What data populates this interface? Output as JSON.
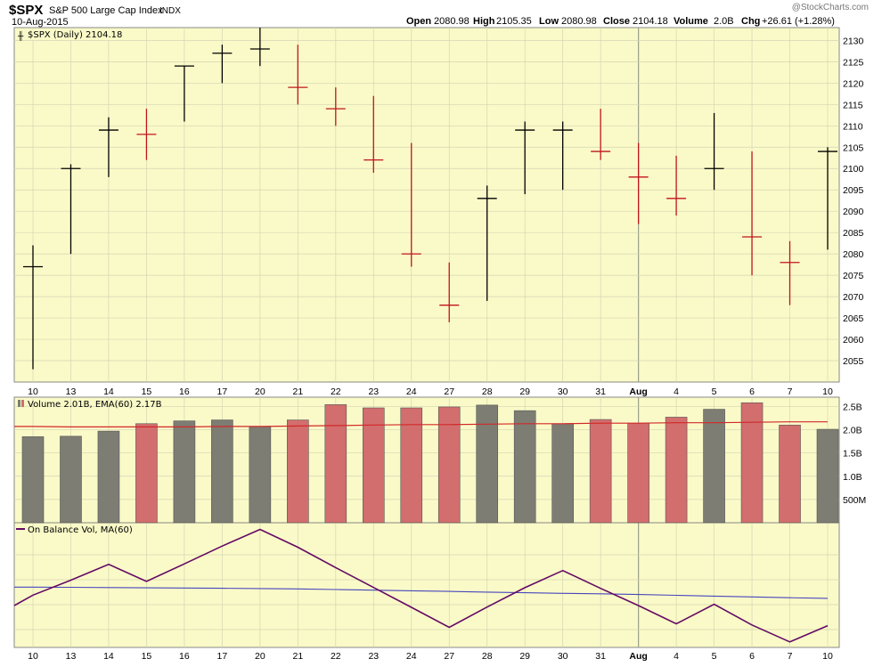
{
  "header": {
    "symbol": "$SPX",
    "name": "S&P 500 Large Cap Index",
    "exchange": "INDX",
    "date": "10-Aug-2015",
    "watermark": "@StockCharts.com",
    "open_label": "Open",
    "open_value": "2080.98",
    "high_label": "High",
    "high_value": "2105.35",
    "low_label": "Low",
    "low_value": "2080.98",
    "close_label": "Close",
    "close_value": "2104.18",
    "volume_label": "Volume",
    "volume_value": "2.0B",
    "chg_label": "Chg",
    "chg_value": "+26.61 (+1.28%)"
  },
  "panels": {
    "price_legend": "$SPX (Daily) 2104.18",
    "volume_legend": "Volume 2.01B, EMA(60) 2.17B",
    "obv_legend": "On Balance Vol, MA(60)"
  },
  "colors": {
    "panel_bg": "#fafac8",
    "up": "#000000",
    "down": "#c0141e",
    "volume_up": "#7d7d73",
    "volume_down": "#d26e6e",
    "ema_line": "#d22828",
    "obv_line": "#640a64",
    "obv_ma_line": "#4646be",
    "grid": "#d4d4b4"
  },
  "chart_data": [
    {
      "type": "ohlc",
      "title": "$SPX (Daily) 2104.18",
      "categories": [
        "10",
        "13",
        "14",
        "15",
        "16",
        "17",
        "20",
        "21",
        "22",
        "23",
        "24",
        "27",
        "28",
        "29",
        "30",
        "31",
        "Aug",
        "4",
        "5",
        "6",
        "7",
        "10"
      ],
      "series": [
        {
          "open": [
            2055,
            2080,
            2098,
            2106,
            2111,
            2123,
            2125,
            2119,
            2114,
            2108,
            2096,
            2078,
            2069,
            2094,
            2097,
            2104,
            2101,
            2095,
            2095,
            2097,
            2083,
            2081
          ],
          "high": [
            2082,
            2101,
            2112,
            2114,
            2124,
            2129,
            2133,
            2129,
            2119,
            2117,
            2106,
            2078,
            2096,
            2111,
            2111,
            2114,
            2106,
            2103,
            2113,
            2104,
            2083,
            2105
          ],
          "low": [
            2053,
            2080,
            2098,
            2102,
            2111,
            2120,
            2124,
            2115,
            2110,
            2099,
            2077,
            2064,
            2069,
            2094,
            2095,
            2102,
            2087,
            2089,
            2095,
            2075,
            2068,
            2081
          ],
          "close": [
            2077,
            2100,
            2109,
            2108,
            2124,
            2127,
            2128,
            2119,
            2114,
            2102,
            2080,
            2068,
            2093,
            2109,
            2109,
            2104,
            2098,
            2093,
            2100,
            2084,
            2078,
            2104
          ],
          "direction": [
            "up",
            "up",
            "up",
            "down",
            "up",
            "up",
            "up",
            "down",
            "down",
            "down",
            "down",
            "down",
            "up",
            "up",
            "up",
            "down",
            "down",
            "down",
            "up",
            "down",
            "down",
            "up"
          ]
        }
      ],
      "ylim": [
        2050,
        2133
      ],
      "yticks": [
        2055,
        2060,
        2065,
        2070,
        2075,
        2080,
        2085,
        2090,
        2095,
        2100,
        2105,
        2110,
        2115,
        2120,
        2125,
        2130
      ],
      "grid": true
    },
    {
      "type": "bar",
      "title": "Volume 2.01B, EMA(60) 2.17B",
      "categories": [
        "10",
        "13",
        "14",
        "15",
        "16",
        "17",
        "20",
        "21",
        "22",
        "23",
        "24",
        "27",
        "28",
        "29",
        "30",
        "31",
        "Aug",
        "4",
        "5",
        "6",
        "7",
        "10"
      ],
      "series": [
        {
          "name": "Volume",
          "values": [
            1.85,
            1.86,
            1.97,
            2.13,
            2.19,
            2.21,
            2.07,
            2.21,
            2.54,
            2.47,
            2.47,
            2.49,
            2.53,
            2.41,
            2.13,
            2.22,
            2.14,
            2.27,
            2.44,
            2.58,
            2.1,
            2.01
          ]
        },
        {
          "name": "EMA(60)",
          "values": [
            2.07,
            2.06,
            2.06,
            2.06,
            2.06,
            2.07,
            2.07,
            2.08,
            2.09,
            2.1,
            2.11,
            2.11,
            2.12,
            2.13,
            2.13,
            2.14,
            2.14,
            2.15,
            2.15,
            2.16,
            2.17,
            2.17
          ]
        }
      ],
      "ylim": [
        0,
        2.7
      ],
      "yticks": [
        0.5,
        1.0,
        1.5,
        2.0,
        2.5
      ],
      "ytick_labels": [
        "500M",
        "1.0B",
        "1.5B",
        "2.0B",
        "2.5B"
      ]
    },
    {
      "type": "line",
      "title": "On Balance Vol, MA(60)",
      "categories": [
        "10",
        "13",
        "14",
        "15",
        "16",
        "17",
        "20",
        "21",
        "22",
        "23",
        "24",
        "27",
        "28",
        "29",
        "30",
        "31",
        "Aug",
        "4",
        "5",
        "6",
        "7",
        "10"
      ],
      "series": [
        {
          "name": "On Balance Vol",
          "values": [
            0.0,
            1.86,
            3.83,
            1.7,
            3.89,
            6.1,
            8.17,
            5.96,
            3.42,
            0.95,
            -1.52,
            -4.01,
            -1.48,
            0.93,
            3.06,
            0.84,
            -1.3,
            -3.57,
            -1.13,
            -3.71,
            -5.81,
            -3.8
          ]
        },
        {
          "name": "MA(60)",
          "values": [
            1.0,
            0.97,
            0.94,
            0.91,
            0.88,
            0.85,
            0.82,
            0.77,
            0.7,
            0.62,
            0.54,
            0.46,
            0.38,
            0.3,
            0.22,
            0.16,
            0.08,
            -0.02,
            -0.12,
            -0.22,
            -0.32,
            -0.4
          ]
        }
      ],
      "ylim": [
        -6.5,
        9.0
      ]
    }
  ]
}
